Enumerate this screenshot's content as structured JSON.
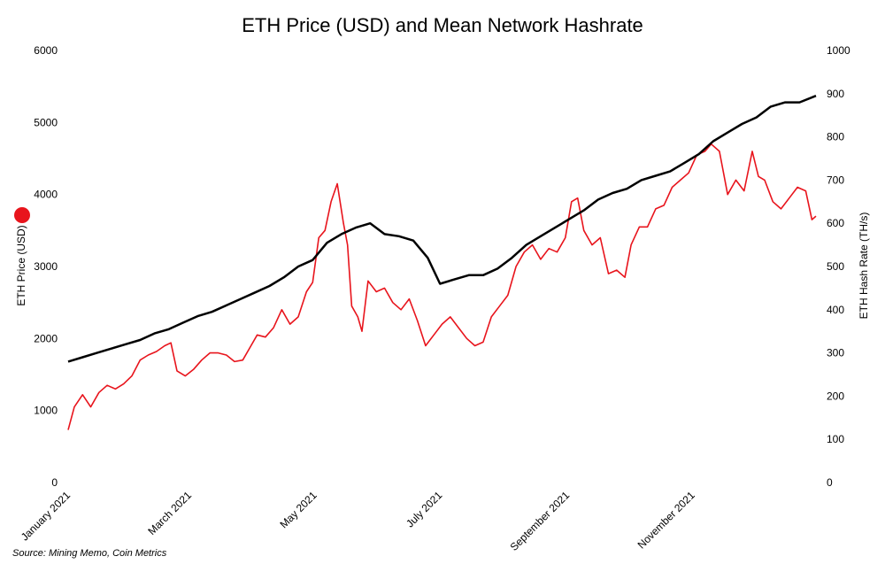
{
  "chart_data": {
    "type": "line",
    "title": "ETH Price (USD) and Mean Network Hashrate",
    "source": "Source: Mining Memo, Coin Metrics",
    "ylabel_left": "ETH Price (USD)",
    "ylabel_right": "ETH Hash Rate (TH/s)",
    "ylim_left": [
      0,
      6000
    ],
    "ylim_right": [
      0,
      1000
    ],
    "yticks_left": [
      "0",
      "1000",
      "2000",
      "3000",
      "4000",
      "5000",
      "6000"
    ],
    "yticks_right": [
      "0",
      "100",
      "200",
      "300",
      "400",
      "500",
      "600",
      "700",
      "800",
      "900",
      "1000"
    ],
    "xlim": [
      "2021-01-01",
      "2021-12-31"
    ],
    "xticks": [
      {
        "date": "2021-01-01",
        "label": "January 2021"
      },
      {
        "date": "2021-03-01",
        "label": "March 2021"
      },
      {
        "date": "2021-05-01",
        "label": "May 2021"
      },
      {
        "date": "2021-07-01",
        "label": "July 2021"
      },
      {
        "date": "2021-09-01",
        "label": "September 2021"
      },
      {
        "date": "2021-11-01",
        "label": "November 2021"
      }
    ],
    "grid": false,
    "legend": "none",
    "series": [
      {
        "axis": "left",
        "color": "#e8141c",
        "points": [
          [
            "2021-01-01",
            730
          ],
          [
            "2021-01-04",
            1050
          ],
          [
            "2021-01-08",
            1220
          ],
          [
            "2021-01-12",
            1050
          ],
          [
            "2021-01-16",
            1250
          ],
          [
            "2021-01-20",
            1350
          ],
          [
            "2021-01-24",
            1300
          ],
          [
            "2021-01-28",
            1370
          ],
          [
            "2021-02-01",
            1480
          ],
          [
            "2021-02-05",
            1700
          ],
          [
            "2021-02-09",
            1770
          ],
          [
            "2021-02-13",
            1820
          ],
          [
            "2021-02-17",
            1900
          ],
          [
            "2021-02-20",
            1940
          ],
          [
            "2021-02-23",
            1550
          ],
          [
            "2021-02-27",
            1480
          ],
          [
            "2021-03-03",
            1570
          ],
          [
            "2021-03-07",
            1700
          ],
          [
            "2021-03-11",
            1800
          ],
          [
            "2021-03-15",
            1800
          ],
          [
            "2021-03-19",
            1770
          ],
          [
            "2021-03-23",
            1680
          ],
          [
            "2021-03-27",
            1700
          ],
          [
            "2021-03-31",
            1900
          ],
          [
            "2021-04-03",
            2050
          ],
          [
            "2021-04-07",
            2020
          ],
          [
            "2021-04-11",
            2150
          ],
          [
            "2021-04-15",
            2400
          ],
          [
            "2021-04-19",
            2200
          ],
          [
            "2021-04-23",
            2300
          ],
          [
            "2021-04-27",
            2650
          ],
          [
            "2021-04-30",
            2780
          ],
          [
            "2021-05-03",
            3400
          ],
          [
            "2021-05-06",
            3500
          ],
          [
            "2021-05-09",
            3900
          ],
          [
            "2021-05-12",
            4150
          ],
          [
            "2021-05-15",
            3600
          ],
          [
            "2021-05-17",
            3300
          ],
          [
            "2021-05-19",
            2450
          ],
          [
            "2021-05-22",
            2300
          ],
          [
            "2021-05-24",
            2100
          ],
          [
            "2021-05-27",
            2800
          ],
          [
            "2021-05-31",
            2650
          ],
          [
            "2021-06-04",
            2700
          ],
          [
            "2021-06-08",
            2500
          ],
          [
            "2021-06-12",
            2400
          ],
          [
            "2021-06-16",
            2550
          ],
          [
            "2021-06-20",
            2250
          ],
          [
            "2021-06-24",
            1900
          ],
          [
            "2021-06-28",
            2050
          ],
          [
            "2021-07-02",
            2200
          ],
          [
            "2021-07-06",
            2300
          ],
          [
            "2021-07-10",
            2150
          ],
          [
            "2021-07-14",
            2000
          ],
          [
            "2021-07-18",
            1900
          ],
          [
            "2021-07-22",
            1950
          ],
          [
            "2021-07-26",
            2300
          ],
          [
            "2021-07-30",
            2450
          ],
          [
            "2021-08-03",
            2600
          ],
          [
            "2021-08-07",
            3000
          ],
          [
            "2021-08-11",
            3200
          ],
          [
            "2021-08-15",
            3300
          ],
          [
            "2021-08-19",
            3100
          ],
          [
            "2021-08-23",
            3250
          ],
          [
            "2021-08-27",
            3200
          ],
          [
            "2021-08-31",
            3400
          ],
          [
            "2021-09-03",
            3900
          ],
          [
            "2021-09-06",
            3950
          ],
          [
            "2021-09-09",
            3500
          ],
          [
            "2021-09-13",
            3300
          ],
          [
            "2021-09-17",
            3400
          ],
          [
            "2021-09-21",
            2900
          ],
          [
            "2021-09-25",
            2950
          ],
          [
            "2021-09-29",
            2850
          ],
          [
            "2021-10-02",
            3300
          ],
          [
            "2021-10-06",
            3550
          ],
          [
            "2021-10-10",
            3550
          ],
          [
            "2021-10-14",
            3800
          ],
          [
            "2021-10-18",
            3850
          ],
          [
            "2021-10-22",
            4100
          ],
          [
            "2021-10-26",
            4200
          ],
          [
            "2021-10-30",
            4300
          ],
          [
            "2021-11-03",
            4550
          ],
          [
            "2021-11-07",
            4600
          ],
          [
            "2021-11-10",
            4700
          ],
          [
            "2021-11-14",
            4600
          ],
          [
            "2021-11-18",
            4000
          ],
          [
            "2021-11-22",
            4200
          ],
          [
            "2021-11-26",
            4050
          ],
          [
            "2021-11-30",
            4600
          ],
          [
            "2021-12-03",
            4250
          ],
          [
            "2021-12-06",
            4200
          ],
          [
            "2021-12-10",
            3900
          ],
          [
            "2021-12-14",
            3800
          ],
          [
            "2021-12-18",
            3950
          ],
          [
            "2021-12-22",
            4100
          ],
          [
            "2021-12-26",
            4050
          ],
          [
            "2021-12-29",
            3650
          ],
          [
            "2021-12-31",
            3700
          ]
        ]
      },
      {
        "axis": "right",
        "color": "#000000",
        "points": [
          [
            "2021-01-01",
            280
          ],
          [
            "2021-01-08",
            290
          ],
          [
            "2021-01-15",
            300
          ],
          [
            "2021-01-22",
            310
          ],
          [
            "2021-01-29",
            320
          ],
          [
            "2021-02-05",
            330
          ],
          [
            "2021-02-12",
            345
          ],
          [
            "2021-02-19",
            355
          ],
          [
            "2021-02-26",
            370
          ],
          [
            "2021-03-05",
            385
          ],
          [
            "2021-03-12",
            395
          ],
          [
            "2021-03-19",
            410
          ],
          [
            "2021-03-26",
            425
          ],
          [
            "2021-04-02",
            440
          ],
          [
            "2021-04-09",
            455
          ],
          [
            "2021-04-16",
            475
          ],
          [
            "2021-04-23",
            500
          ],
          [
            "2021-04-30",
            515
          ],
          [
            "2021-05-07",
            555
          ],
          [
            "2021-05-14",
            575
          ],
          [
            "2021-05-21",
            590
          ],
          [
            "2021-05-28",
            600
          ],
          [
            "2021-06-04",
            575
          ],
          [
            "2021-06-11",
            570
          ],
          [
            "2021-06-18",
            560
          ],
          [
            "2021-06-25",
            520
          ],
          [
            "2021-07-01",
            460
          ],
          [
            "2021-07-08",
            470
          ],
          [
            "2021-07-15",
            480
          ],
          [
            "2021-07-22",
            480
          ],
          [
            "2021-07-29",
            495
          ],
          [
            "2021-08-05",
            520
          ],
          [
            "2021-08-12",
            550
          ],
          [
            "2021-08-19",
            570
          ],
          [
            "2021-08-26",
            590
          ],
          [
            "2021-09-02",
            610
          ],
          [
            "2021-09-09",
            630
          ],
          [
            "2021-09-16",
            655
          ],
          [
            "2021-09-23",
            670
          ],
          [
            "2021-09-30",
            680
          ],
          [
            "2021-10-07",
            700
          ],
          [
            "2021-10-14",
            710
          ],
          [
            "2021-10-21",
            720
          ],
          [
            "2021-10-28",
            740
          ],
          [
            "2021-11-04",
            760
          ],
          [
            "2021-11-11",
            790
          ],
          [
            "2021-11-18",
            810
          ],
          [
            "2021-11-25",
            830
          ],
          [
            "2021-12-02",
            845
          ],
          [
            "2021-12-09",
            870
          ],
          [
            "2021-12-16",
            880
          ],
          [
            "2021-12-23",
            880
          ],
          [
            "2021-12-31",
            895
          ]
        ]
      }
    ]
  }
}
